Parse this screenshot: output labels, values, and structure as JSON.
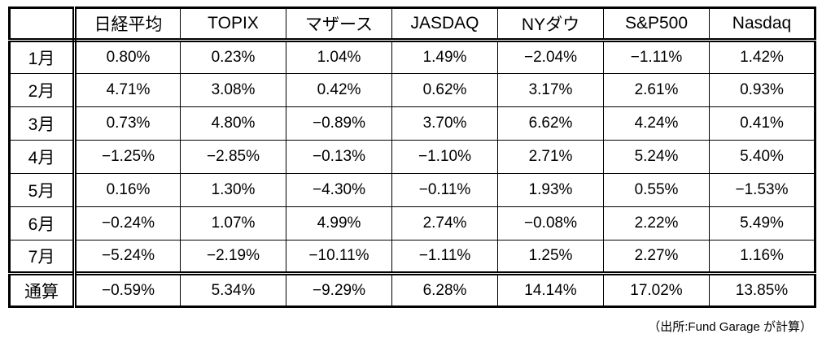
{
  "table": {
    "corner_label": "",
    "headers": [
      "日経平均",
      "TOPIX",
      "マザース",
      "JASDAQ",
      "NYダウ",
      "S&P500",
      "Nasdaq"
    ],
    "rows": [
      {
        "label": "1月",
        "values": [
          "0.80%",
          "0.23%",
          "1.04%",
          "1.49%",
          "−2.04%",
          "−1.11%",
          "1.42%"
        ]
      },
      {
        "label": "2月",
        "values": [
          "4.71%",
          "3.08%",
          "0.42%",
          "0.62%",
          "3.17%",
          "2.61%",
          "0.93%"
        ]
      },
      {
        "label": "3月",
        "values": [
          "0.73%",
          "4.80%",
          "−0.89%",
          "3.70%",
          "6.62%",
          "4.24%",
          "0.41%"
        ]
      },
      {
        "label": "4月",
        "values": [
          "−1.25%",
          "−2.85%",
          "−0.13%",
          "−1.10%",
          "2.71%",
          "5.24%",
          "5.40%"
        ]
      },
      {
        "label": "5月",
        "values": [
          "0.16%",
          "1.30%",
          "−4.30%",
          "−0.11%",
          "1.93%",
          "0.55%",
          "−1.53%"
        ]
      },
      {
        "label": "6月",
        "values": [
          "−0.24%",
          "1.07%",
          "4.99%",
          "2.74%",
          "−0.08%",
          "2.22%",
          "5.49%"
        ]
      },
      {
        "label": "7月",
        "values": [
          "−5.24%",
          "−2.19%",
          "−10.11%",
          "−1.11%",
          "1.25%",
          "2.27%",
          "1.16%"
        ]
      }
    ],
    "total_row": {
      "label": "通算",
      "values": [
        "−0.59%",
        "5.34%",
        "−9.29%",
        "6.28%",
        "14.14%",
        "17.02%",
        "13.85%"
      ]
    }
  },
  "footnote": "（出所:Fund Garage が計算）",
  "colors": {
    "border": "#000000",
    "text": "#000000",
    "background": "#ffffff"
  },
  "chart_data": {
    "type": "table",
    "title": "",
    "columns": [
      "日経平均",
      "TOPIX",
      "マザース",
      "JASDAQ",
      "NYダウ",
      "S&P500",
      "Nasdaq"
    ],
    "row_labels": [
      "1月",
      "2月",
      "3月",
      "4月",
      "5月",
      "6月",
      "7月",
      "通算"
    ],
    "unit": "percent",
    "values": [
      [
        0.8,
        0.23,
        1.04,
        1.49,
        -2.04,
        -1.11,
        1.42
      ],
      [
        4.71,
        3.08,
        0.42,
        0.62,
        3.17,
        2.61,
        0.93
      ],
      [
        0.73,
        4.8,
        -0.89,
        3.7,
        6.62,
        4.24,
        0.41
      ],
      [
        -1.25,
        -2.85,
        -0.13,
        -1.1,
        2.71,
        5.24,
        5.4
      ],
      [
        0.16,
        1.3,
        -4.3,
        -0.11,
        1.93,
        0.55,
        -1.53
      ],
      [
        -0.24,
        1.07,
        4.99,
        2.74,
        -0.08,
        2.22,
        5.49
      ],
      [
        -5.24,
        -2.19,
        -10.11,
        -1.11,
        1.25,
        2.27,
        1.16
      ],
      [
        -0.59,
        5.34,
        -9.29,
        6.28,
        14.14,
        17.02,
        13.85
      ]
    ]
  }
}
